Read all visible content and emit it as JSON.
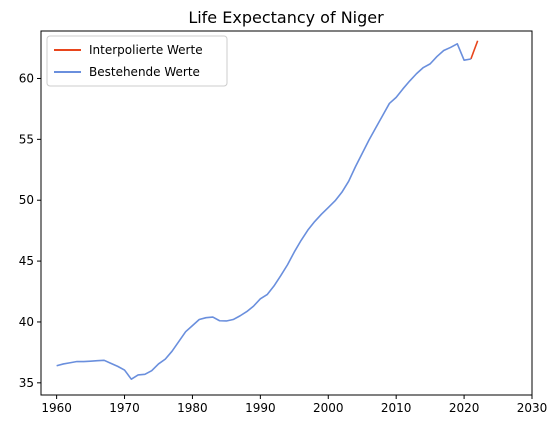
{
  "chart_data": {
    "type": "line",
    "title": "Life Expectancy of Niger",
    "xlabel": "",
    "ylabel": "",
    "xlim": [
      1957.7,
      2030
    ],
    "ylim": [
      34.0,
      63.9
    ],
    "xticks": [
      1960,
      1970,
      1980,
      1990,
      2000,
      2010,
      2020,
      2030
    ],
    "yticks": [
      35,
      40,
      45,
      50,
      55,
      60
    ],
    "grid": false,
    "legend": "top-left",
    "series": [
      {
        "name": "Interpolierte Werte",
        "color": "#e8451c",
        "x": [
          2021,
          2022
        ],
        "y": [
          61.6,
          63.1
        ]
      },
      {
        "name": "Bestehende Werte",
        "color": "#6a8fdd",
        "x": [
          1960,
          1961,
          1962,
          1963,
          1964,
          1965,
          1966,
          1967,
          1968,
          1969,
          1970,
          1971,
          1972,
          1973,
          1974,
          1975,
          1976,
          1977,
          1978,
          1979,
          1980,
          1981,
          1982,
          1983,
          1984,
          1985,
          1986,
          1987,
          1988,
          1989,
          1990,
          1991,
          1992,
          1993,
          1994,
          1995,
          1996,
          1997,
          1998,
          1999,
          2000,
          2001,
          2002,
          2003,
          2004,
          2005,
          2006,
          2007,
          2008,
          2009,
          2010,
          2011,
          2012,
          2013,
          2014,
          2015,
          2016,
          2017,
          2018,
          2019,
          2020,
          2021
        ],
        "y": [
          36.4,
          36.55,
          36.65,
          36.75,
          36.75,
          36.78,
          36.82,
          36.85,
          36.6,
          36.35,
          36.05,
          35.3,
          35.65,
          35.7,
          36.0,
          36.55,
          36.95,
          37.6,
          38.4,
          39.2,
          39.7,
          40.2,
          40.35,
          40.4,
          40.1,
          40.08,
          40.2,
          40.5,
          40.85,
          41.3,
          41.9,
          42.25,
          42.95,
          43.8,
          44.7,
          45.75,
          46.7,
          47.55,
          48.25,
          48.85,
          49.4,
          49.95,
          50.65,
          51.55,
          52.75,
          53.85,
          54.95,
          55.95,
          56.95,
          57.95,
          58.45,
          59.15,
          59.8,
          60.4,
          60.9,
          61.2,
          61.8,
          62.3,
          62.55,
          62.85,
          61.5,
          61.6
        ]
      }
    ]
  }
}
